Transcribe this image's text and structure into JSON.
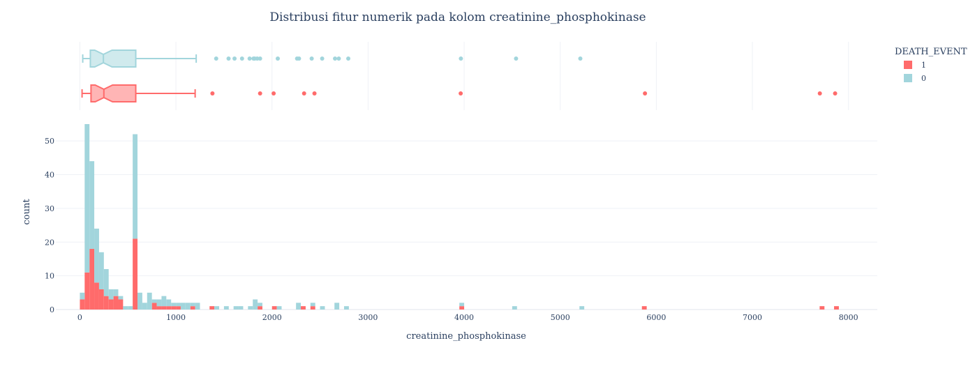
{
  "chart_data": {
    "type": "histogram",
    "title": "Distribusi fitur numerik pada kolom creatinine_phosphokinase",
    "xlabel": "creatinine_phosphokinase",
    "ylabel": "count",
    "xlim": [
      -250,
      8300
    ],
    "ylim": [
      0,
      55
    ],
    "x_ticks": [
      0,
      1000,
      2000,
      3000,
      4000,
      5000,
      6000,
      7000,
      8000
    ],
    "y_ticks": [
      0,
      10,
      20,
      30,
      40,
      50
    ],
    "barmode": "stacked",
    "bin_width": 50,
    "legend": {
      "title": "DEATH_EVENT",
      "position": "top-right",
      "entries": [
        "1",
        "0"
      ]
    },
    "colors": {
      "1": "#ff6b6b",
      "0": "#a2d5dc"
    },
    "series": [
      {
        "name": "1",
        "color": "#ff6b6b",
        "bins": [
          {
            "x0": 0,
            "count": 3
          },
          {
            "x0": 50,
            "count": 11
          },
          {
            "x0": 100,
            "count": 18
          },
          {
            "x0": 150,
            "count": 8
          },
          {
            "x0": 200,
            "count": 6
          },
          {
            "x0": 250,
            "count": 4
          },
          {
            "x0": 300,
            "count": 3
          },
          {
            "x0": 350,
            "count": 4
          },
          {
            "x0": 400,
            "count": 3
          },
          {
            "x0": 550,
            "count": 21
          },
          {
            "x0": 750,
            "count": 2
          },
          {
            "x0": 800,
            "count": 1
          },
          {
            "x0": 850,
            "count": 1
          },
          {
            "x0": 900,
            "count": 1
          },
          {
            "x0": 950,
            "count": 1
          },
          {
            "x0": 1000,
            "count": 1
          },
          {
            "x0": 1150,
            "count": 1
          },
          {
            "x0": 1350,
            "count": 1
          },
          {
            "x0": 1850,
            "count": 1
          },
          {
            "x0": 2000,
            "count": 1
          },
          {
            "x0": 2300,
            "count": 1
          },
          {
            "x0": 2400,
            "count": 1
          },
          {
            "x0": 3950,
            "count": 1
          },
          {
            "x0": 5850,
            "count": 1
          },
          {
            "x0": 7700,
            "count": 1
          },
          {
            "x0": 7850,
            "count": 1
          }
        ],
        "box": {
          "lowerfence": 23,
          "q1": 116,
          "median": 250,
          "q3": 582,
          "upperfence": 1200,
          "outliers": [
            1380,
            1876,
            2017,
            2334,
            2442,
            3964,
            5882,
            7702,
            7861
          ]
        }
      },
      {
        "name": "0",
        "color": "#a2d5dc",
        "bins": [
          {
            "x0": 0,
            "count": 2
          },
          {
            "x0": 50,
            "count": 44
          },
          {
            "x0": 100,
            "count": 26
          },
          {
            "x0": 150,
            "count": 16
          },
          {
            "x0": 200,
            "count": 11
          },
          {
            "x0": 250,
            "count": 8
          },
          {
            "x0": 300,
            "count": 3
          },
          {
            "x0": 350,
            "count": 2
          },
          {
            "x0": 400,
            "count": 1
          },
          {
            "x0": 450,
            "count": 1
          },
          {
            "x0": 500,
            "count": 1
          },
          {
            "x0": 550,
            "count": 31
          },
          {
            "x0": 600,
            "count": 5
          },
          {
            "x0": 650,
            "count": 2
          },
          {
            "x0": 700,
            "count": 5
          },
          {
            "x0": 750,
            "count": 1
          },
          {
            "x0": 800,
            "count": 2
          },
          {
            "x0": 850,
            "count": 3
          },
          {
            "x0": 900,
            "count": 2
          },
          {
            "x0": 950,
            "count": 1
          },
          {
            "x0": 1000,
            "count": 1
          },
          {
            "x0": 1050,
            "count": 2
          },
          {
            "x0": 1100,
            "count": 2
          },
          {
            "x0": 1150,
            "count": 1
          },
          {
            "x0": 1200,
            "count": 2
          },
          {
            "x0": 1400,
            "count": 1
          },
          {
            "x0": 1500,
            "count": 1
          },
          {
            "x0": 1600,
            "count": 1
          },
          {
            "x0": 1650,
            "count": 1
          },
          {
            "x0": 1750,
            "count": 1
          },
          {
            "x0": 1800,
            "count": 3
          },
          {
            "x0": 1850,
            "count": 1
          },
          {
            "x0": 2050,
            "count": 1
          },
          {
            "x0": 2250,
            "count": 2
          },
          {
            "x0": 2400,
            "count": 1
          },
          {
            "x0": 2500,
            "count": 1
          },
          {
            "x0": 2650,
            "count": 2
          },
          {
            "x0": 2750,
            "count": 1
          },
          {
            "x0": 3950,
            "count": 1
          },
          {
            "x0": 4500,
            "count": 1
          },
          {
            "x0": 5200,
            "count": 1
          }
        ],
        "box": {
          "lowerfence": 30,
          "q1": 109,
          "median": 245,
          "q3": 582,
          "upperfence": 1211,
          "outliers": [
            1419,
            1548,
            1610,
            1688,
            1767,
            1808,
            1820,
            1846,
            1876,
            2060,
            2261,
            2281,
            2413,
            2522,
            2656,
            2695,
            2794,
            3966,
            4540,
            5209
          ]
        }
      }
    ]
  }
}
